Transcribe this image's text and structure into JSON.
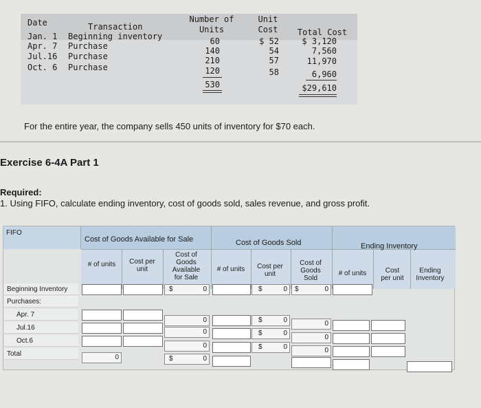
{
  "inventory_table": {
    "headers": {
      "date": "Date",
      "transaction": "Transaction",
      "units": "Number of\nUnits",
      "unit_cost": "Unit\nCost",
      "total_cost": "Total Cost"
    },
    "rows": [
      {
        "date": "Jan. 1",
        "transaction": "Beginning inventory",
        "units": "60",
        "unit_cost": "$ 52",
        "total_cost": "$ 3,120"
      },
      {
        "date": "Apr. 7",
        "transaction": "Purchase",
        "units": "140",
        "unit_cost": "54",
        "total_cost": "7,560"
      },
      {
        "date": "Jul.16",
        "transaction": "Purchase",
        "units": "210",
        "unit_cost": "57",
        "total_cost": "11,970"
      },
      {
        "date": "Oct. 6",
        "transaction": "Purchase",
        "units": "120",
        "unit_cost": "58",
        "total_cost": "6,960"
      }
    ],
    "total_units": "530",
    "total_cost": "$29,610"
  },
  "sales_text": "For the entire year, the company sells 450 units of inventory for $70 each.",
  "exercise_title": "Exercise 6-4A Part 1",
  "required_label": "Required:",
  "required_text": "1. Using FIFO, calculate ending inventory, cost of goods sold, sales revenue, and gross profit.",
  "fifo": {
    "corner_label": "FIFO",
    "group_available": "Cost of Goods Available for Sale",
    "group_sold": "Cost of Goods Sold",
    "group_ending": "Ending Inventory",
    "col_units": "# of units",
    "col_cost_per_unit": "Cost per\nunit",
    "col_cost_available": "Cost of\nGoods\nAvailable\nfor Sale",
    "col_sold_units": "# of units",
    "col_sold_cpu": "Cost per\nunit",
    "col_cogs": "Cost of\nGoods\nSold",
    "col_end_units": "# of units",
    "col_end_cpu": "Cost\nper unit",
    "col_end_inv": "Ending\nInventory",
    "row_labels": {
      "beginning": "Beginning Inventory",
      "purchases": "Purchases:",
      "apr": "Apr. 7",
      "jul": "Jul.16",
      "oct": "Oct.6",
      "total": "Total"
    },
    "currency": "$",
    "zero": "0"
  }
}
